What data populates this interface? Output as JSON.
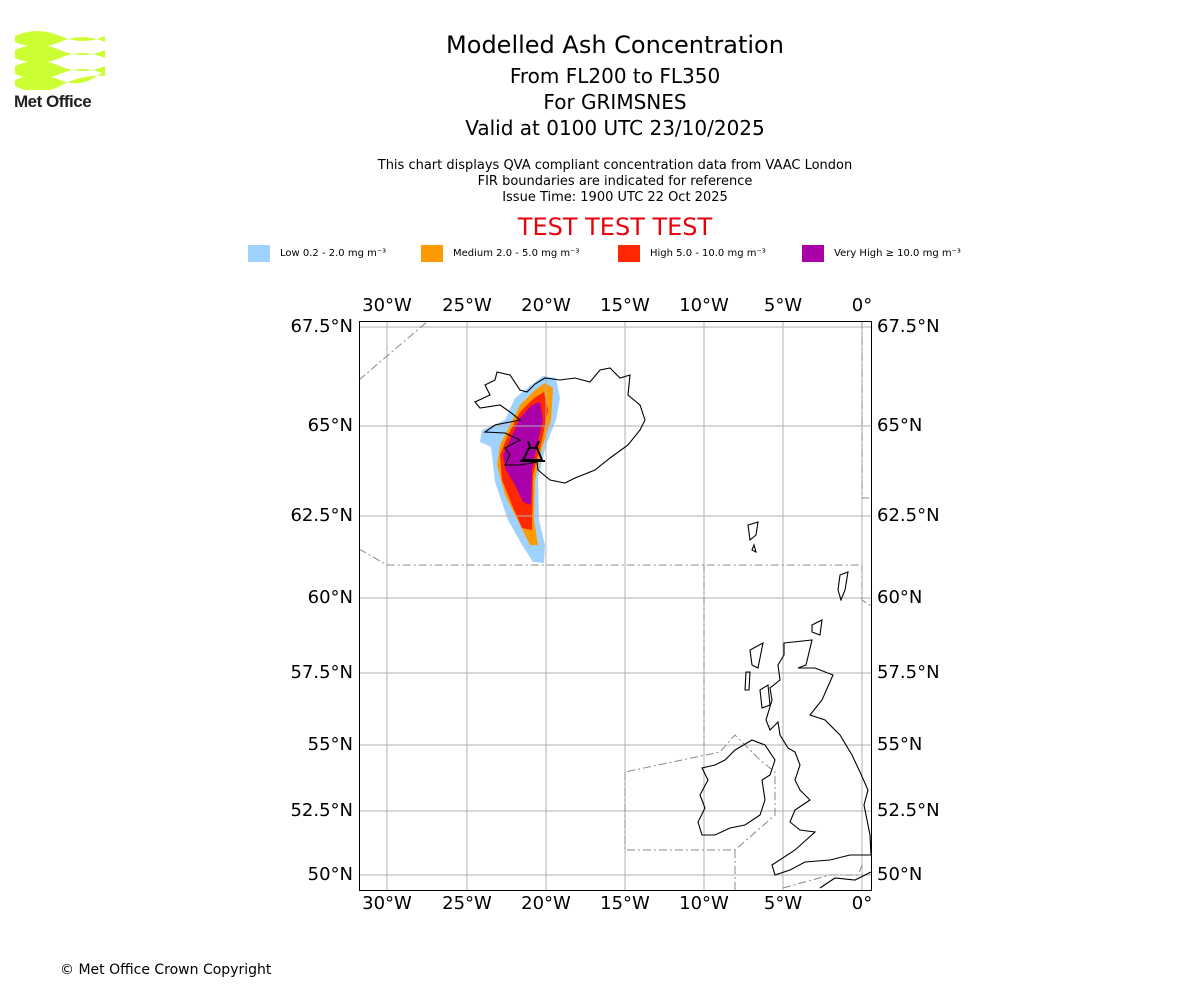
{
  "logo": {
    "text": "Met Office",
    "color": "#ccff33"
  },
  "title": {
    "main": "Modelled Ash Concentration",
    "levels": "From FL200 to FL350",
    "volcano": "For GRIMSNES",
    "valid": "Valid at 0100 UTC 23/10/2025"
  },
  "subtitle": {
    "line1": "This chart displays QVA compliant concentration data from VAAC London",
    "line2": "FIR boundaries are indicated for reference",
    "line3": "Issue Time: 1900 UTC 22 Oct 2025"
  },
  "test_banner": {
    "text": "TEST TEST TEST",
    "color": "#e8000b"
  },
  "legend": [
    {
      "label": "Low 0.2 - 2.0 mg m⁻³",
      "color": "#a0d2ff"
    },
    {
      "label": "Medium 2.0 - 5.0 mg m⁻³",
      "color": "#ff9900"
    },
    {
      "label": "High 5.0 - 10.0 mg m⁻³",
      "color": "#ff2800"
    },
    {
      "label": "Very High ≥ 10.0 mg m⁻³",
      "color": "#aa00aa"
    }
  ],
  "map": {
    "lon_labels": [
      "30°W",
      "25°W",
      "20°W",
      "15°W",
      "10°W",
      "5°W",
      "0°"
    ],
    "lat_labels": [
      "67.5°N",
      "65°N",
      "62.5°N",
      "60°N",
      "57.5°N",
      "55°N",
      "52.5°N",
      "50°N"
    ],
    "volcano_symbol": "volcano-icon"
  },
  "footer": {
    "copyright": "© Met Office Crown Copyright"
  }
}
